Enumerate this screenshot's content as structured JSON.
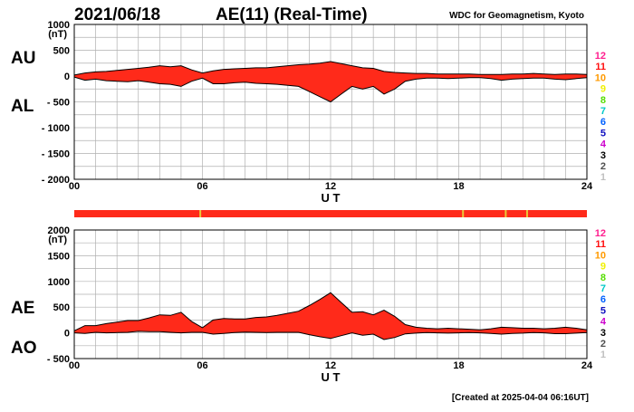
{
  "header": {
    "date": "2021/06/18",
    "title": "AE(11) (Real-Time)",
    "source": "WDC for Geomagnetism, Kyoto"
  },
  "footer": {
    "created": "[Created at 2025-04-04 06:16UT]"
  },
  "colors": {
    "fill": "#ff2a1a",
    "outline": "#000000",
    "grid": "#b0b0b0",
    "status_bar": "#ff2a1a",
    "status_marker": "#e8c838"
  },
  "station_scale": {
    "labels": [
      "12",
      "11",
      "10",
      "9",
      "8",
      "7",
      "6",
      "5",
      "4",
      "3",
      "2",
      "1"
    ],
    "colors": [
      "#ff1f8f",
      "#ff1010",
      "#ff9a00",
      "#f0f000",
      "#55dd00",
      "#00c8c8",
      "#0060ff",
      "#1010c0",
      "#cc00cc",
      "#000000",
      "#505050",
      "#c0c0c0"
    ]
  },
  "status_bar": {
    "markers_ut": [
      5.9,
      18.2,
      20.2,
      21.2
    ]
  },
  "chart_data": [
    {
      "type": "area",
      "series": [
        {
          "name": "AU",
          "x": [
            0,
            0.5,
            1,
            1.5,
            2,
            2.5,
            3,
            3.5,
            4,
            4.5,
            5,
            5.5,
            6,
            6.5,
            7,
            7.5,
            8,
            8.5,
            9,
            9.5,
            10,
            10.5,
            11,
            11.5,
            12,
            12.5,
            13,
            13.5,
            14,
            14.5,
            15,
            15.5,
            16,
            16.5,
            17,
            17.5,
            18,
            18.5,
            19,
            19.5,
            20,
            20.5,
            21,
            21.5,
            22,
            22.5,
            23,
            23.5,
            24
          ],
          "values": [
            20,
            60,
            80,
            90,
            110,
            130,
            150,
            170,
            200,
            180,
            200,
            120,
            60,
            100,
            130,
            140,
            150,
            160,
            160,
            180,
            200,
            220,
            230,
            250,
            280,
            240,
            200,
            160,
            150,
            90,
            70,
            60,
            50,
            50,
            40,
            40,
            40,
            40,
            30,
            30,
            30,
            40,
            40,
            50,
            40,
            30,
            40,
            40,
            30
          ]
        },
        {
          "name": "AL",
          "x": [
            0,
            0.5,
            1,
            1.5,
            2,
            2.5,
            3,
            3.5,
            4,
            4.5,
            5,
            5.5,
            6,
            6.5,
            7,
            7.5,
            8,
            8.5,
            9,
            9.5,
            10,
            10.5,
            11,
            11.5,
            12,
            12.5,
            13,
            13.5,
            14,
            14.5,
            15,
            15.5,
            16,
            16.5,
            17,
            17.5,
            18,
            18.5,
            19,
            19.5,
            20,
            20.5,
            21,
            21.5,
            22,
            22.5,
            23,
            23.5,
            24
          ],
          "values": [
            -20,
            -80,
            -60,
            -90,
            -100,
            -110,
            -90,
            -120,
            -150,
            -160,
            -200,
            -100,
            -40,
            -150,
            -150,
            -130,
            -120,
            -140,
            -150,
            -160,
            -180,
            -200,
            -300,
            -400,
            -500,
            -350,
            -200,
            -250,
            -200,
            -350,
            -250,
            -100,
            -60,
            -40,
            -40,
            -50,
            -40,
            -30,
            -30,
            -50,
            -80,
            -60,
            -50,
            -40,
            -40,
            -60,
            -70,
            -50,
            -30
          ]
        }
      ],
      "ylabel": "(nT)",
      "xlabel": "U T",
      "series_labels": [
        "AU",
        "AL"
      ],
      "xlim": [
        0,
        24
      ],
      "ylim": [
        -2000,
        1000
      ],
      "yticks": [
        1000,
        500,
        0,
        -500,
        -1000,
        -1500,
        -2000
      ],
      "ytick_labels": [
        "1000",
        "500",
        "0",
        "- 500",
        "- 1000",
        "- 1500",
        "- 2000"
      ],
      "xticks": [
        0,
        6,
        12,
        18,
        24
      ],
      "xtick_labels": [
        "00",
        "06",
        "12",
        "18",
        "24"
      ],
      "grid": true
    },
    {
      "type": "area",
      "series": [
        {
          "name": "AE",
          "x": [
            0,
            0.5,
            1,
            1.5,
            2,
            2.5,
            3,
            3.5,
            4,
            4.5,
            5,
            5.5,
            6,
            6.5,
            7,
            7.5,
            8,
            8.5,
            9,
            9.5,
            10,
            10.5,
            11,
            11.5,
            12,
            12.5,
            13,
            13.5,
            14,
            14.5,
            15,
            15.5,
            16,
            16.5,
            17,
            17.5,
            18,
            18.5,
            19,
            19.5,
            20,
            20.5,
            21,
            21.5,
            22,
            22.5,
            23,
            23.5,
            24
          ],
          "values": [
            40,
            140,
            140,
            180,
            210,
            240,
            240,
            290,
            350,
            340,
            400,
            220,
            100,
            250,
            280,
            270,
            270,
            300,
            310,
            340,
            380,
            420,
            530,
            650,
            780,
            590,
            400,
            410,
            350,
            440,
            320,
            160,
            110,
            90,
            80,
            90,
            80,
            70,
            60,
            80,
            110,
            100,
            90,
            90,
            80,
            90,
            110,
            90,
            60
          ]
        },
        {
          "name": "AO",
          "x": [
            0,
            0.5,
            1,
            1.5,
            2,
            2.5,
            3,
            3.5,
            4,
            4.5,
            5,
            5.5,
            6,
            6.5,
            7,
            7.5,
            8,
            8.5,
            9,
            9.5,
            10,
            10.5,
            11,
            11.5,
            12,
            12.5,
            13,
            13.5,
            14,
            14.5,
            15,
            15.5,
            16,
            16.5,
            17,
            17.5,
            18,
            18.5,
            19,
            19.5,
            20,
            20.5,
            21,
            21.5,
            22,
            22.5,
            23,
            23.5,
            24
          ],
          "values": [
            0,
            -10,
            10,
            0,
            5,
            10,
            30,
            25,
            25,
            10,
            0,
            10,
            10,
            -25,
            -10,
            5,
            15,
            10,
            5,
            10,
            10,
            10,
            -35,
            -75,
            -110,
            -55,
            0,
            -45,
            -25,
            -130,
            -90,
            -20,
            -5,
            5,
            0,
            -5,
            0,
            5,
            0,
            -10,
            -25,
            -10,
            -5,
            5,
            0,
            -15,
            -15,
            -5,
            5
          ]
        }
      ],
      "ylabel": "(nT)",
      "xlabel": "U T",
      "series_labels": [
        "AE",
        "AO"
      ],
      "xlim": [
        0,
        24
      ],
      "ylim": [
        -500,
        2000
      ],
      "yticks": [
        2000,
        1500,
        1000,
        500,
        0,
        -500
      ],
      "ytick_labels": [
        "2000",
        "1500",
        "1000",
        "500",
        "0",
        "- 500"
      ],
      "xticks": [
        0,
        6,
        12,
        18,
        24
      ],
      "xtick_labels": [
        "00",
        "06",
        "12",
        "18",
        "24"
      ],
      "grid": true
    }
  ]
}
